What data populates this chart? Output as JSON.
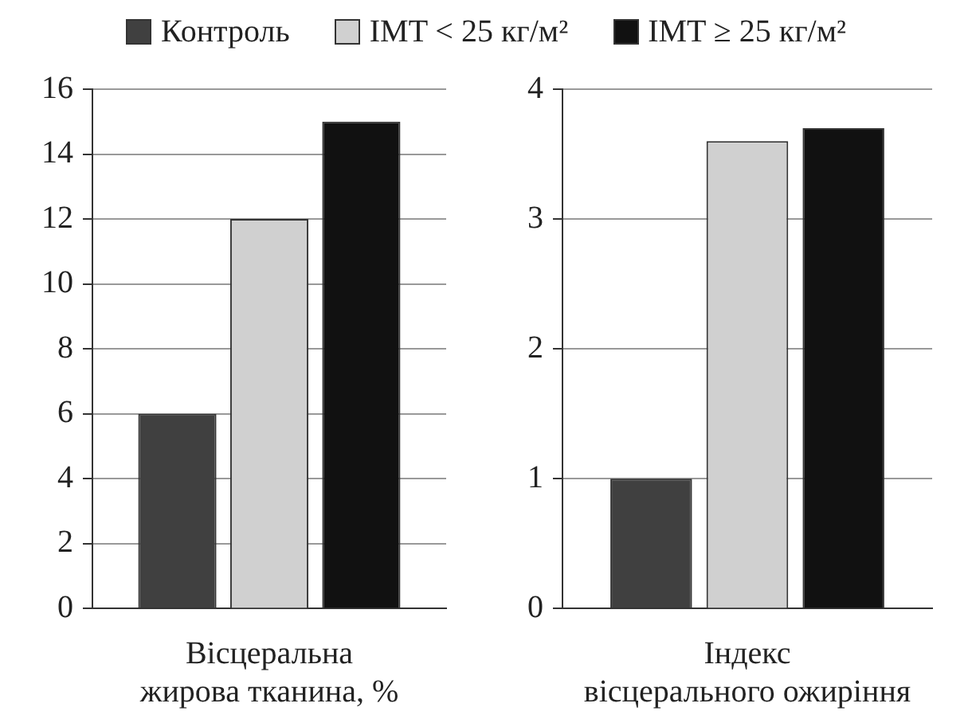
{
  "chart_data": [
    {
      "type": "bar",
      "categories": [
        null
      ],
      "xlabel": "Вісцеральна\nжирова тканина, %",
      "ylim": [
        0,
        16
      ],
      "yticks": [
        0,
        2,
        4,
        6,
        8,
        10,
        12,
        14,
        16
      ],
      "grid": "y",
      "legend": "top",
      "series": [
        {
          "name": "Контроль",
          "color": "#404040",
          "values": [
            6
          ]
        },
        {
          "name": "IMT < 25 кг/м²",
          "color": "#d0d0d0",
          "values": [
            12
          ]
        },
        {
          "name": "IMT ≥ 25 кг/м²",
          "color": "#111111",
          "values": [
            15
          ]
        }
      ]
    },
    {
      "type": "bar",
      "categories": [
        null
      ],
      "xlabel": "Індекс\nвісцерального ожиріння",
      "ylim": [
        0,
        4
      ],
      "yticks": [
        0,
        1,
        2,
        3,
        4
      ],
      "grid": "y",
      "series": [
        {
          "color": "#404040",
          "values": [
            1
          ]
        },
        {
          "color": "#d0d0d0",
          "values": [
            3.6
          ]
        },
        {
          "color": "#111111",
          "values": [
            3.7
          ]
        }
      ]
    }
  ]
}
